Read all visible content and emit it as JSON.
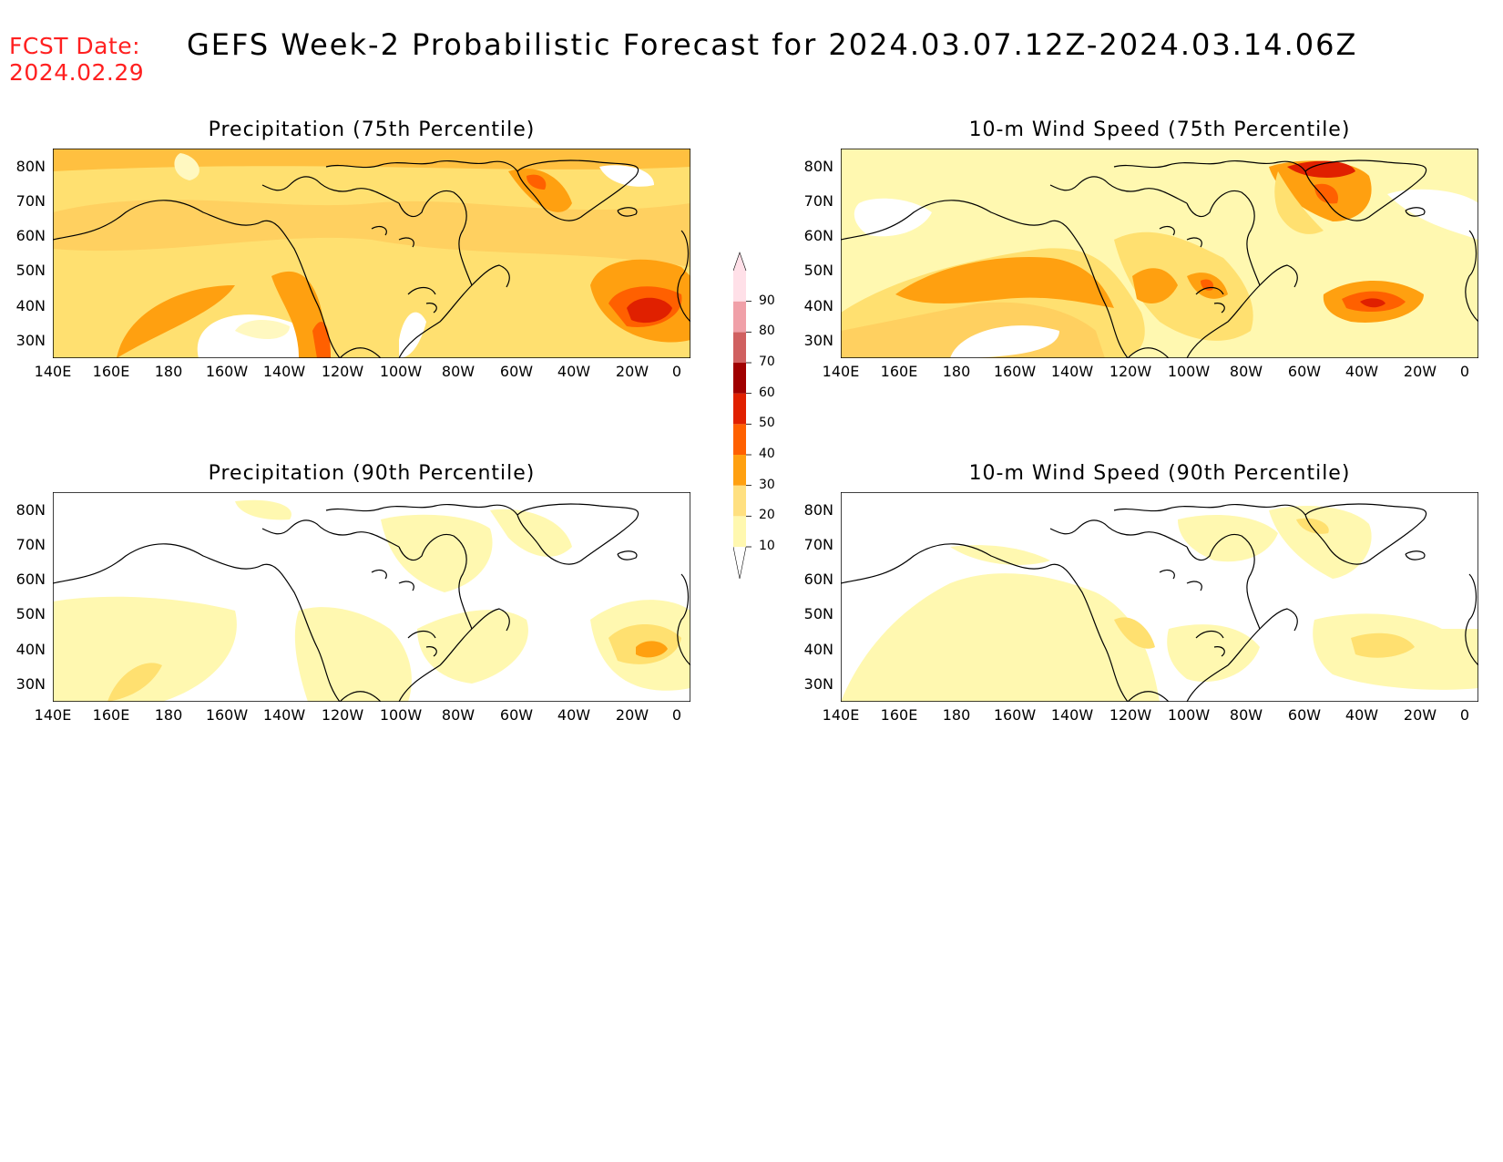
{
  "header": {
    "fcst_label": "FCST Date:",
    "fcst_date": "2024.02.29",
    "title": "GEFS Week-2 Probabilistic Forecast for 2024.03.07.12Z-2024.03.14.06Z"
  },
  "panels": [
    {
      "title": "Precipitation (75th Percentile)"
    },
    {
      "title": "10-m Wind Speed (75th Percentile)"
    },
    {
      "title": "Precipitation (90th Percentile)"
    },
    {
      "title": "10-m Wind Speed (90th Percentile)"
    }
  ],
  "axes": {
    "lat_labels": [
      "80N",
      "70N",
      "60N",
      "50N",
      "40N",
      "30N"
    ],
    "lon_labels": [
      "140E",
      "160E",
      "180",
      "160W",
      "140W",
      "120W",
      "100W",
      "80W",
      "60W",
      "40W",
      "20W",
      "0"
    ]
  },
  "colorbar": {
    "levels": [
      "10",
      "20",
      "30",
      "40",
      "50",
      "60",
      "70",
      "80",
      "90"
    ],
    "colors": [
      "#fff8b0",
      "#ffe080",
      "#ffa010",
      "#ff6000",
      "#e02000",
      "#a00000",
      "#d06060",
      "#f0a0a8",
      "#ffe0e8"
    ]
  },
  "colors": {
    "fcst_date": "#ff2020"
  }
}
